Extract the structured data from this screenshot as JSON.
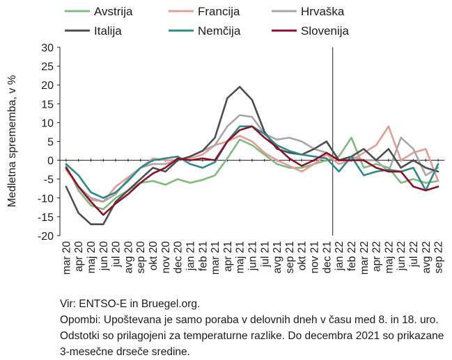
{
  "chart_data": {
    "type": "line",
    "ylabel": "Medletna sprememba, v %",
    "ylim": [
      -20,
      30
    ],
    "yticks": [
      -20,
      -15,
      -10,
      -5,
      0,
      5,
      10,
      15,
      20,
      25,
      30
    ],
    "grid": false,
    "legend_position": "top",
    "categories": [
      "mar 20",
      "apr 20",
      "maj 20",
      "jun 20",
      "jul 20",
      "avg 20",
      "sep 20",
      "okt 20",
      "nov 20",
      "dec 20",
      "jan 21",
      "feb 21",
      "mar 21",
      "apr 21",
      "maj 21",
      "jun 21",
      "jul 21",
      "avg 21",
      "sep 21",
      "okt 21",
      "nov 21",
      "dec 21",
      "jan 22",
      "feb 22",
      "mar 22",
      "apr 22",
      "maj 22",
      "jun 22",
      "jul 22",
      "avg 22",
      "sep 22"
    ],
    "vline_after": "dec 21",
    "series": [
      {
        "name": "Avstrija",
        "color": "#7dbb7d",
        "values": [
          -1.5,
          -8,
          -12,
          -13,
          -10,
          -8,
          -6,
          -5.5,
          -6.5,
          -5,
          -6,
          -5.2,
          -4,
          0.5,
          5.5,
          4,
          1.5,
          -1,
          -2,
          -2,
          -1,
          0,
          1,
          6,
          -2,
          -1,
          -2,
          -6,
          -5,
          -6,
          -5.5
        ]
      },
      {
        "name": "Francija",
        "color": "#e59a96",
        "values": [
          -2.5,
          -7,
          -10.5,
          -11,
          -7,
          -4.5,
          -2,
          0.5,
          0,
          0,
          0.5,
          1.5,
          4,
          5,
          6.5,
          5,
          2,
          0,
          -1.5,
          -3,
          -1,
          1.5,
          -1,
          0,
          2,
          4,
          9,
          0,
          2,
          3,
          -5.5
        ]
      },
      {
        "name": "Hrvaška",
        "color": "#a6a6a6",
        "values": [
          -2,
          -7,
          -10,
          -11,
          -9,
          -5,
          -2,
          -1,
          -1,
          0,
          1,
          2.5,
          4,
          9,
          12,
          11.5,
          7,
          5.5,
          6,
          5,
          3,
          2,
          0,
          1,
          0,
          0,
          -3,
          6,
          3,
          -4,
          -2
        ]
      },
      {
        "name": "Italija",
        "color": "#4d4d4d",
        "values": [
          -7,
          -14,
          -17,
          -17,
          -11,
          -8,
          -5,
          -2,
          -3,
          0,
          1,
          2.5,
          6,
          16.5,
          19.5,
          16,
          7.5,
          3,
          2,
          1.5,
          3,
          5,
          0,
          1,
          3,
          0,
          3,
          -2,
          0,
          -2,
          -3
        ]
      },
      {
        "name": "Nemčija",
        "color": "#2e8a8a",
        "values": [
          -1,
          -4,
          -8.5,
          -10,
          -8.5,
          -5.5,
          -2,
          0,
          0.5,
          1,
          -1,
          -2,
          -0.5,
          5,
          9,
          9,
          7,
          4,
          2.5,
          1.5,
          1,
          0.5,
          -3,
          1,
          -4,
          -3,
          -2.5,
          -3,
          -2,
          -8,
          -1
        ]
      },
      {
        "name": "Slovenija",
        "color": "#8b1028",
        "values": [
          -2,
          -7,
          -11,
          -14.5,
          -11.5,
          -9,
          -6,
          -3.5,
          -2,
          0.5,
          0,
          0.5,
          0,
          5,
          8,
          9,
          6,
          3.5,
          0.5,
          -1.5,
          0,
          2,
          0,
          0,
          0,
          -2,
          -3,
          -3,
          -7,
          -8,
          -7
        ]
      }
    ]
  },
  "source_text": "Vir: ENTSO-E in Bruegel.org.",
  "notes_text": "Opombi: Upoštevana je samo poraba v delovnih dneh v času med 8. in 18. uro. Odstotki so prilagojeni za temperaturne razlike. Do decembra 2021 so prikazane 3-mesečne drseče sredine."
}
